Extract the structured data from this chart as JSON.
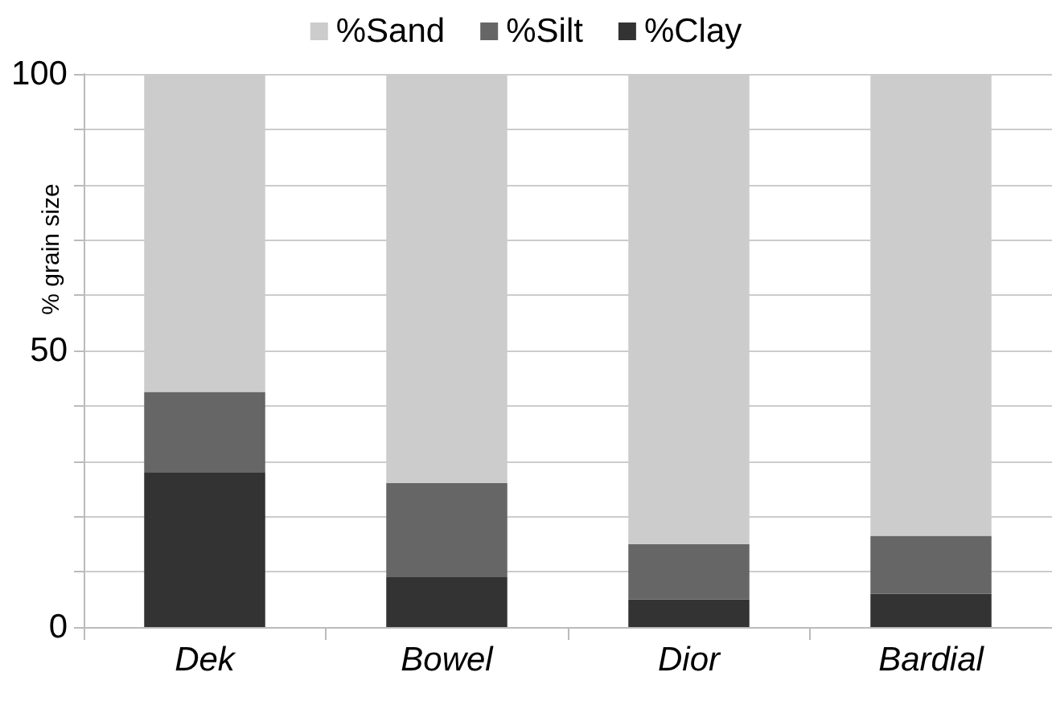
{
  "chart_data": {
    "type": "bar",
    "stacked": true,
    "ylabel": "% grain size",
    "categories": [
      "Dek",
      "Bowel",
      "Dior",
      "Bardial"
    ],
    "series": [
      {
        "name": "%Clay",
        "color": "#333333",
        "values": [
          28,
          9,
          5,
          6
        ]
      },
      {
        "name": "%Silt",
        "color": "#666666",
        "values": [
          14.5,
          17,
          10,
          10.5
        ]
      },
      {
        "name": "%Sand",
        "color": "#cccccc",
        "values": [
          57.5,
          74,
          85,
          83.5
        ]
      }
    ],
    "ylim": [
      0,
      100
    ],
    "yticks": [
      0,
      {
        "value": 10,
        "label": null
      },
      {
        "value": 20,
        "label": null
      },
      {
        "value": 30,
        "label": null
      },
      {
        "value": 40,
        "label": null
      },
      50,
      {
        "value": 60,
        "label": null
      },
      {
        "value": 70,
        "label": null
      },
      {
        "value": 80,
        "label": null
      },
      {
        "value": 90,
        "label": null
      },
      100
    ],
    "grid": "y",
    "legend": "top"
  }
}
